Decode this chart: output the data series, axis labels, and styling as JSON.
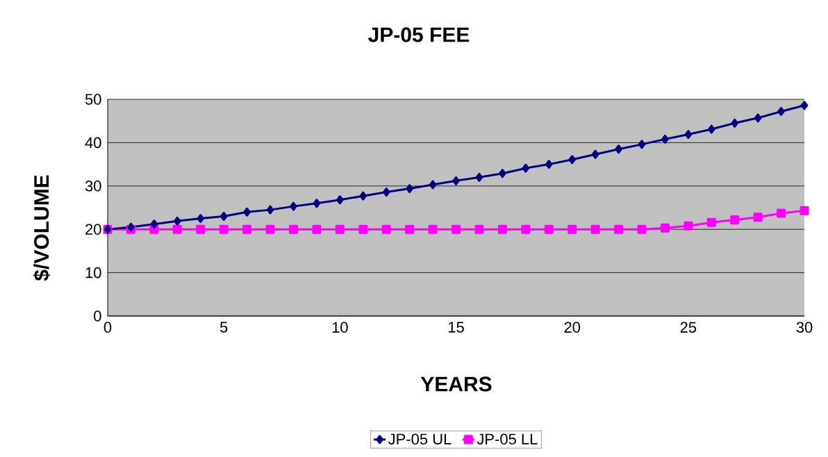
{
  "chart_data": {
    "type": "line",
    "title": "JP-05 FEE",
    "xlabel": "YEARS",
    "ylabel": "$/VOLUME",
    "x": [
      0,
      1,
      2,
      3,
      4,
      5,
      6,
      7,
      8,
      9,
      10,
      11,
      12,
      13,
      14,
      15,
      16,
      17,
      18,
      19,
      20,
      21,
      22,
      23,
      24,
      25,
      26,
      27,
      28,
      29,
      30
    ],
    "series": [
      {
        "name": "JP-05 UL",
        "color": "#000080",
        "marker": "diamond",
        "values": [
          20,
          20.5,
          21.2,
          21.9,
          22.5,
          23.0,
          24.0,
          24.5,
          25.3,
          26.0,
          26.8,
          27.7,
          28.6,
          29.4,
          30.3,
          31.2,
          32.0,
          32.9,
          34.1,
          35.0,
          36.1,
          37.3,
          38.5,
          39.6,
          40.8,
          41.9,
          43.1,
          44.5,
          45.7,
          47.2,
          48.6
        ]
      },
      {
        "name": "JP-05 LL",
        "color": "#ff00ff",
        "marker": "square",
        "values": [
          20,
          20,
          20,
          20,
          20,
          20,
          20,
          20,
          20,
          20,
          20,
          20,
          20,
          20,
          20,
          20,
          20,
          20,
          20,
          20,
          20,
          20,
          20,
          20,
          20.3,
          20.8,
          21.6,
          22.2,
          22.8,
          23.7,
          24.3
        ]
      }
    ],
    "xlim": [
      0,
      30
    ],
    "xticks": [
      0,
      5,
      10,
      15,
      20,
      25,
      30
    ],
    "ylim": [
      0,
      50
    ],
    "yticks": [
      0,
      10,
      20,
      30,
      40,
      50
    ],
    "grid": "y",
    "legend": "bottom",
    "line_style": "solid"
  }
}
